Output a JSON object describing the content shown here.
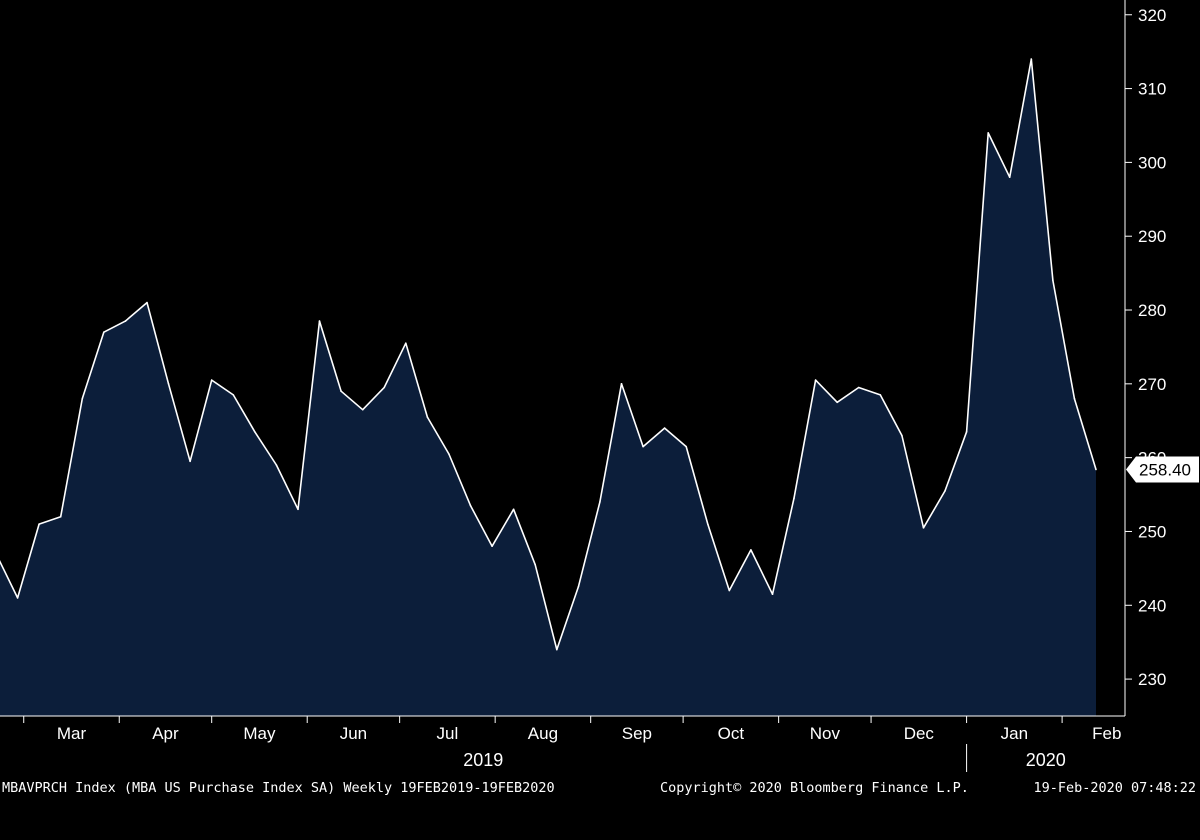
{
  "footer": {
    "left": "MBAVPRCH Index (MBA US Purchase Index SA) Weekly 19FEB2019-19FEB2020",
    "copyright": "Copyright© 2020 Bloomberg Finance L.P.",
    "timestamp": "19-Feb-2020 07:48:22"
  },
  "colors": {
    "fill": "#0c1e3a",
    "line": "#ffffff",
    "background": "#000000",
    "label_bg": "#ffffff",
    "label_text": "#000000"
  },
  "chart_data": {
    "type": "area",
    "series": [
      {
        "values": [
          247.0,
          241.0,
          251.0,
          252.0,
          268.0,
          277.0,
          278.5,
          281.0,
          270.0,
          259.5,
          270.5,
          268.5,
          263.5,
          259.0,
          253.0,
          278.5,
          269.0,
          266.5,
          269.5,
          275.5,
          265.5,
          260.5,
          253.5,
          248.0,
          253.0,
          245.5,
          234.0,
          242.5,
          254.0,
          270.0,
          261.5,
          264.0,
          261.5,
          251.0,
          242.0,
          247.5,
          241.5,
          254.5,
          270.5,
          267.5,
          269.5,
          268.5,
          263.0,
          250.5,
          255.5,
          263.5,
          304.0,
          298.0,
          314.0,
          284.0,
          268.0,
          258.4
        ]
      }
    ],
    "x_start": "2019-02-20",
    "x_step_days": 7,
    "ylim": [
      225,
      322
    ],
    "yticks": [
      230,
      240,
      250,
      260,
      270,
      280,
      290,
      300,
      310,
      320
    ],
    "xtick_labels": [
      "Mar",
      "Apr",
      "May",
      "Jun",
      "Jul",
      "Aug",
      "Sep",
      "Oct",
      "Nov",
      "Dec",
      "Jan",
      "Feb"
    ],
    "year_labels": [
      "2019",
      "2020"
    ],
    "last_value_label": "258.40",
    "grid": false
  }
}
